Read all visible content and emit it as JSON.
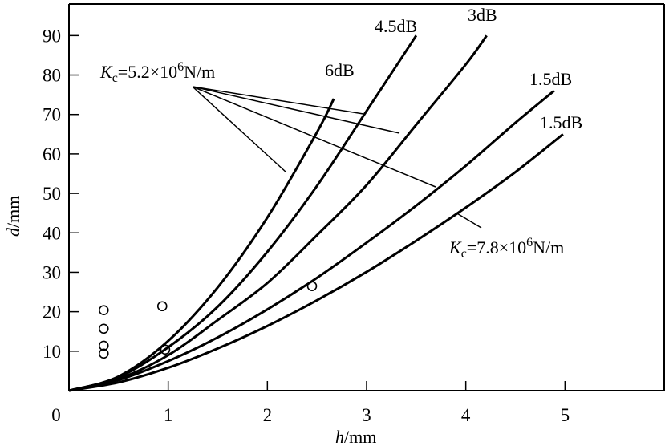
{
  "chart_data": {
    "type": "line",
    "title": "",
    "xlabel": {
      "italic": "h",
      "rest": "/mm"
    },
    "ylabel": {
      "italic": "d",
      "rest": "/mm"
    },
    "xlim": [
      0,
      6
    ],
    "ylim": [
      0,
      98
    ],
    "grid": false,
    "x_ticks": [
      "0",
      "1",
      "2",
      "3",
      "4",
      "5"
    ],
    "x_tick_values": [
      0,
      1,
      2,
      3,
      4,
      5
    ],
    "y_ticks": [
      "10",
      "20",
      "30",
      "40",
      "50",
      "60",
      "70",
      "80",
      "90"
    ],
    "y_tick_values": [
      10,
      20,
      30,
      40,
      50,
      60,
      70,
      80,
      90
    ],
    "series": [
      {
        "name": "6dB",
        "x": [
          0,
          0.5,
          1,
          1.5,
          2,
          2.5,
          2.67
        ],
        "y": [
          0,
          3.6,
          12.6,
          26.2,
          43.9,
          65.5,
          74
        ]
      },
      {
        "name": "4.5dB",
        "x": [
          0,
          0.5,
          1,
          1.5,
          2,
          2.5,
          3,
          3.5
        ],
        "y": [
          0,
          3.4,
          11,
          21.3,
          35.2,
          51.9,
          70.9,
          90
        ]
      },
      {
        "name": "3dB",
        "x": [
          0,
          0.5,
          1,
          1.5,
          2,
          2.5,
          3,
          3.5,
          4,
          4.21
        ],
        "y": [
          0,
          3.0,
          9,
          17.9,
          27.3,
          39.4,
          52.1,
          67.4,
          82.7,
          90
        ]
      },
      {
        "name": "1.5dB",
        "x": [
          0,
          0.5,
          1,
          1.5,
          2,
          2.5,
          3,
          3.5,
          4,
          4.5,
          4.89
        ],
        "y": [
          0,
          2.7,
          7.5,
          13.5,
          20.6,
          28.6,
          37.5,
          46.9,
          57.0,
          67.9,
          76
        ]
      },
      {
        "name": "1.5dB",
        "x": [
          0,
          0.5,
          1,
          1.5,
          2,
          2.5,
          3,
          3.5,
          4,
          4.5,
          4.98
        ],
        "y": [
          0,
          2.1,
          5.8,
          10.7,
          16.4,
          22.9,
          30.1,
          38.0,
          46.4,
          55.4,
          65
        ]
      }
    ],
    "scatter": {
      "name": "measured",
      "x": [
        0.35,
        0.35,
        0.35,
        0.35,
        0.94,
        0.97,
        2.45
      ],
      "y": [
        20.4,
        15.7,
        11.4,
        9.4,
        21.4,
        10.4,
        26.5
      ]
    },
    "annotations": [
      {
        "K": "K",
        "sub": "c",
        "mid": "=5.2×10",
        "sup": "6",
        "unit": "N/m"
      },
      {
        "K": "K",
        "sub": "c",
        "mid": "=7.8×10",
        "sup": "6",
        "unit": "N/m"
      }
    ]
  }
}
